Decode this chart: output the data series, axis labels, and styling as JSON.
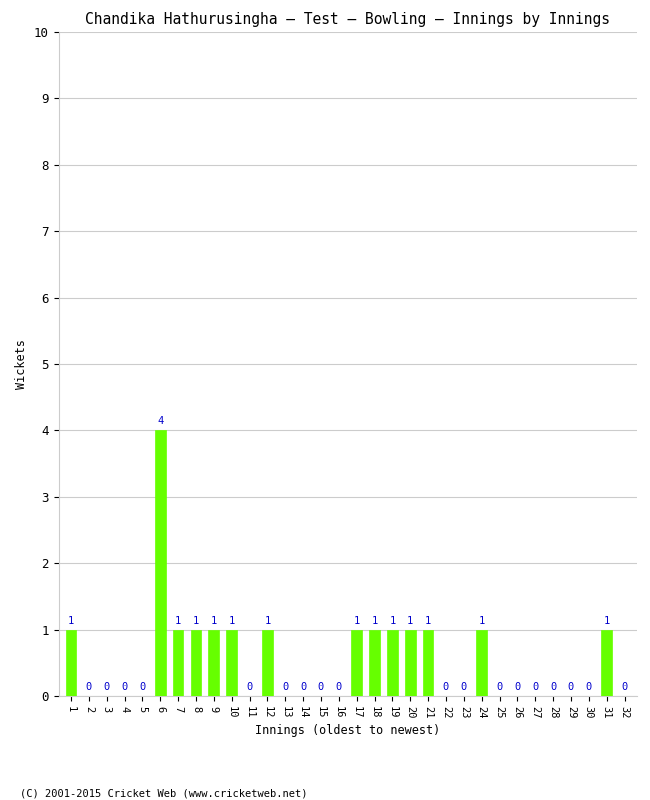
{
  "title": "Chandika Hathurusingha – Test – Bowling – Innings by Innings",
  "xlabel": "Innings (oldest to newest)",
  "ylabel": "Wickets",
  "ylim": [
    0,
    10
  ],
  "yticks": [
    0,
    1,
    2,
    3,
    4,
    5,
    6,
    7,
    8,
    9,
    10
  ],
  "bar_color": "#66ff00",
  "label_color": "#0000cc",
  "background_color": "#ffffff",
  "footer": "(C) 2001-2015 Cricket Web (www.cricketweb.net)",
  "innings": [
    "1",
    "2",
    "3",
    "4",
    "5",
    "6",
    "7",
    "8",
    "9",
    "10",
    "11",
    "12",
    "13",
    "14",
    "15",
    "16",
    "17",
    "18",
    "19",
    "20",
    "21",
    "22",
    "23",
    "24",
    "25",
    "26",
    "27",
    "28",
    "29",
    "30",
    "31",
    "32"
  ],
  "wickets": [
    1,
    0,
    0,
    0,
    0,
    4,
    1,
    1,
    1,
    1,
    0,
    1,
    0,
    0,
    0,
    0,
    1,
    1,
    1,
    1,
    1,
    0,
    0,
    1,
    0,
    0,
    0,
    0,
    0,
    0,
    1,
    0
  ]
}
